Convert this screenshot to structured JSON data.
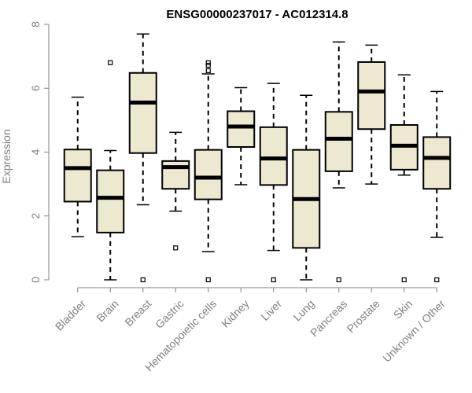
{
  "chart_data": {
    "type": "box",
    "title": "ENSG00000237017 - AC012314.8",
    "xlabel": "",
    "ylabel": "Expression",
    "ylim": [
      0,
      8
    ],
    "yticks": [
      0,
      2,
      4,
      6,
      8
    ],
    "grid": false,
    "colors": {
      "box_fill": "#EDE8D0",
      "box_stroke": "#000000",
      "axis": "#808080"
    },
    "categories": [
      "Bladder",
      "Brain",
      "Breast",
      "Gastric",
      "Hematopoietic cells",
      "Kidney",
      "Liver",
      "Lung",
      "Pancreas",
      "Prostate",
      "Skin",
      "Unknown / Other"
    ],
    "boxes": [
      {
        "category": "Bladder",
        "min": 1.35,
        "q1": 2.45,
        "median": 3.5,
        "q3": 4.08,
        "max": 5.72,
        "outliers": []
      },
      {
        "category": "Brain",
        "min": 0.0,
        "q1": 1.48,
        "median": 2.57,
        "q3": 3.43,
        "max": 4.05,
        "outliers": [
          6.8
        ]
      },
      {
        "category": "Breast",
        "min": 2.35,
        "q1": 3.97,
        "median": 5.55,
        "q3": 6.48,
        "max": 7.7,
        "outliers": [
          0.0
        ]
      },
      {
        "category": "Gastric",
        "min": 2.15,
        "q1": 2.85,
        "median": 3.53,
        "q3": 3.72,
        "max": 4.62,
        "outliers": [
          1.0
        ]
      },
      {
        "category": "Hematopoietic cells",
        "min": 0.88,
        "q1": 2.52,
        "median": 3.2,
        "q3": 4.07,
        "max": 6.45,
        "outliers": [
          0.0,
          6.55,
          6.72,
          6.8
        ]
      },
      {
        "category": "Kidney",
        "min": 2.98,
        "q1": 4.16,
        "median": 4.8,
        "q3": 5.28,
        "max": 6.02,
        "outliers": []
      },
      {
        "category": "Liver",
        "min": 0.92,
        "q1": 2.97,
        "median": 3.8,
        "q3": 4.78,
        "max": 6.15,
        "outliers": [
          0.0
        ]
      },
      {
        "category": "Lung",
        "min": 0.0,
        "q1": 1.0,
        "median": 2.53,
        "q3": 4.07,
        "max": 5.78,
        "outliers": []
      },
      {
        "category": "Pancreas",
        "min": 2.88,
        "q1": 3.4,
        "median": 4.42,
        "q3": 5.26,
        "max": 7.45,
        "outliers": [
          0.0
        ]
      },
      {
        "category": "Prostate",
        "min": 3.0,
        "q1": 4.72,
        "median": 5.9,
        "q3": 6.82,
        "max": 7.35,
        "outliers": []
      },
      {
        "category": "Skin",
        "min": 3.28,
        "q1": 3.45,
        "median": 4.2,
        "q3": 4.85,
        "max": 6.42,
        "outliers": [
          0.0
        ]
      },
      {
        "category": "Unknown / Other",
        "min": 1.33,
        "q1": 2.85,
        "median": 3.82,
        "q3": 4.47,
        "max": 5.9,
        "outliers": [
          0.0
        ]
      }
    ]
  }
}
